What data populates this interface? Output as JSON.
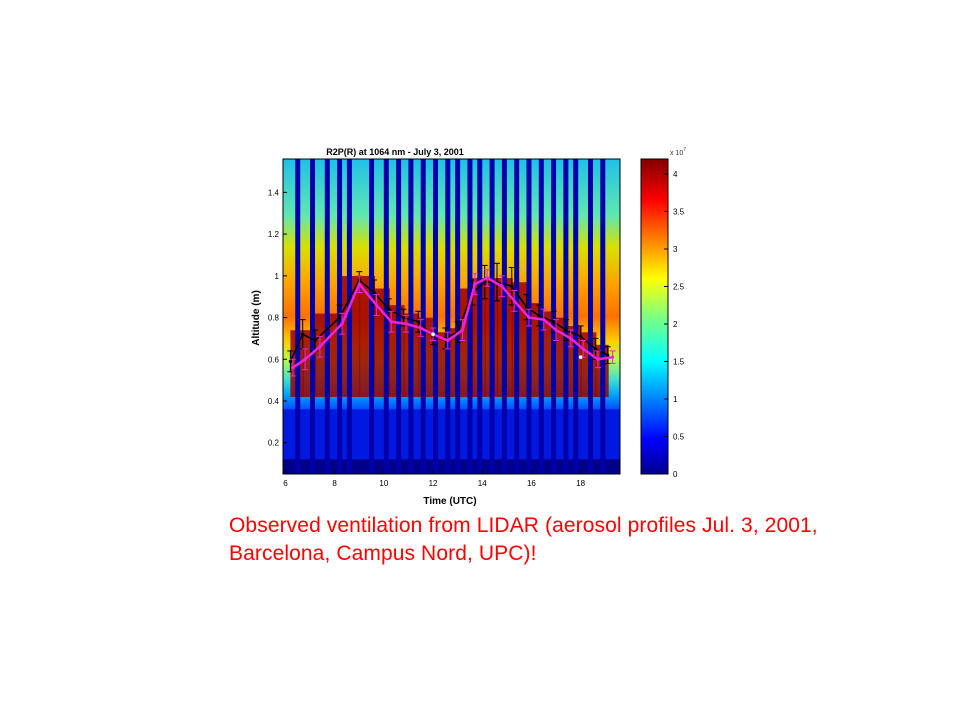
{
  "slide": {
    "caption": "Observed ventilation from LIDAR (aerosol profiles Jul. 3, 2001, Barcelona, Campus Nord, UPC)!"
  },
  "chart_data": {
    "type": "heatmap",
    "title": "R2P(R) at 1064 nm - July 3, 2001",
    "xlabel": "Time (UTC)",
    "ylabel": "Altitude (m)",
    "xlim": [
      5.9,
      19.6
    ],
    "ylim": [
      0.05,
      1.56
    ],
    "xticks": [
      6,
      8,
      10,
      12,
      14,
      16,
      18
    ],
    "yticks": [
      0.2,
      0.4,
      0.6,
      0.8,
      1,
      1.2,
      1.4
    ],
    "colorbar": {
      "label": "x 10^7",
      "exponent_base": "x 10",
      "exponent": "7",
      "range": [
        0,
        4.2
      ],
      "ticks": [
        0,
        0.5,
        1,
        1.5,
        2,
        2.5,
        3,
        3.5,
        4
      ],
      "colormap": "jet"
    },
    "data_gap_times": [
      6.5,
      7.1,
      7.7,
      8.2,
      8.6,
      9.5,
      10.1,
      10.6,
      11.1,
      11.6,
      12.1,
      12.6,
      13.0,
      13.5,
      13.9,
      14.4,
      14.9,
      15.4,
      15.9,
      16.4,
      16.9,
      17.4,
      17.8,
      18.4,
      18.9
    ],
    "series": [
      {
        "name": "",
        "color": "#000000",
        "x": [
          6.2,
          6.7,
          7.2,
          8.2,
          9.0,
          9.6,
          10.2,
          10.8,
          11.4,
          12.0,
          12.5,
          13.0,
          13.6,
          14.1,
          14.6,
          15.2,
          15.8,
          16.3,
          16.9,
          17.4,
          18.0,
          18.6,
          19.1
        ],
        "y": [
          0.59,
          0.72,
          0.69,
          0.8,
          0.98,
          0.92,
          0.84,
          0.8,
          0.78,
          0.71,
          0.7,
          0.73,
          0.92,
          0.97,
          0.97,
          0.95,
          0.85,
          0.81,
          0.78,
          0.74,
          0.71,
          0.65,
          0.62
        ],
        "err": [
          0.05,
          0.07,
          0.05,
          0.06,
          0.04,
          0.06,
          0.05,
          0.04,
          0.05,
          0.04,
          0.05,
          0.05,
          0.06,
          0.08,
          0.09,
          0.09,
          0.06,
          0.05,
          0.05,
          0.05,
          0.05,
          0.05,
          0.04
        ]
      },
      {
        "name": "",
        "color": "#ee22dd",
        "x": [
          6.3,
          6.8,
          7.4,
          8.3,
          9.0,
          9.7,
          10.3,
          10.9,
          11.5,
          12.0,
          12.6,
          13.2,
          13.7,
          14.2,
          14.8,
          15.3,
          15.9,
          16.5,
          17.0,
          17.6,
          18.1,
          18.7,
          19.3
        ],
        "y": [
          0.56,
          0.6,
          0.66,
          0.77,
          0.96,
          0.86,
          0.78,
          0.77,
          0.75,
          0.72,
          0.69,
          0.74,
          0.96,
          0.99,
          0.95,
          0.88,
          0.8,
          0.79,
          0.74,
          0.7,
          0.65,
          0.6,
          0.61
        ],
        "err": [
          0.04,
          0.05,
          0.05,
          0.05,
          0.04,
          0.05,
          0.05,
          0.04,
          0.04,
          0.03,
          0.04,
          0.05,
          0.05,
          0.04,
          0.05,
          0.05,
          0.04,
          0.05,
          0.05,
          0.04,
          0.04,
          0.04,
          0.03
        ]
      }
    ],
    "markers": [
      {
        "x": 12.0,
        "y": 0.72
      },
      {
        "x": 18.0,
        "y": 0.61
      }
    ]
  }
}
